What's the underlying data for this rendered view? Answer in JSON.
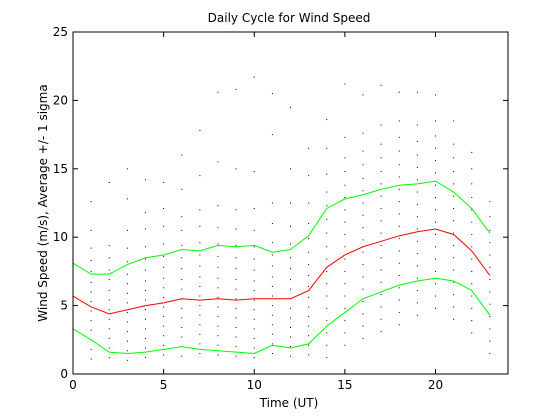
{
  "chart_data": {
    "type": "line",
    "title": "Daily Cycle for Wind Speed",
    "xlabel": "Time (UT)",
    "ylabel": "Wind Speed (m/s), Average +/- 1 sigma",
    "xlim": [
      0,
      24
    ],
    "ylim": [
      0,
      25
    ],
    "xticks": [
      0,
      5,
      10,
      15,
      20
    ],
    "yticks": [
      0,
      5,
      10,
      15,
      20,
      25
    ],
    "grid": false,
    "x": [
      0,
      1,
      2,
      3,
      4,
      5,
      6,
      7,
      8,
      9,
      10,
      11,
      12,
      13,
      14,
      15,
      16,
      17,
      18,
      19,
      20,
      21,
      22,
      23
    ],
    "series": [
      {
        "role": "mean",
        "color": "#ff0000",
        "values": [
          5.7,
          4.9,
          4.4,
          4.7,
          5.0,
          5.2,
          5.5,
          5.4,
          5.5,
          5.4,
          5.5,
          5.5,
          5.5,
          6.1,
          7.8,
          8.7,
          9.3,
          9.7,
          10.1,
          10.4,
          10.6,
          10.2,
          9.0,
          7.2
        ]
      },
      {
        "role": "mean + 1 sigma",
        "color": "#00ff00",
        "values": [
          8.1,
          7.3,
          7.3,
          8.0,
          8.5,
          8.7,
          9.1,
          9.0,
          9.4,
          9.3,
          9.4,
          8.9,
          9.1,
          10.1,
          12.1,
          12.8,
          13.1,
          13.5,
          13.8,
          13.9,
          14.1,
          13.3,
          12.1,
          10.3
        ]
      },
      {
        "role": "mean - 1 sigma",
        "color": "#00ff00",
        "values": [
          3.3,
          2.5,
          1.6,
          1.5,
          1.6,
          1.8,
          2.0,
          1.8,
          1.7,
          1.6,
          1.5,
          2.1,
          1.9,
          2.2,
          3.5,
          4.5,
          5.5,
          6.0,
          6.5,
          6.8,
          7.0,
          6.8,
          6.1,
          4.3
        ]
      }
    ],
    "scatter_color": "#000000",
    "scatter": [
      [
        0,
        1.5
      ],
      [
        0,
        2.2
      ],
      [
        0,
        3.0
      ],
      [
        0,
        3.8
      ],
      [
        0,
        4.5
      ],
      [
        0,
        5.2
      ],
      [
        0,
        5.9
      ],
      [
        0,
        6.6
      ],
      [
        0,
        7.3
      ],
      [
        0,
        8.0
      ],
      [
        0,
        8.8
      ],
      [
        0,
        9.6
      ],
      [
        1,
        1.1
      ],
      [
        1,
        1.8
      ],
      [
        1,
        2.5
      ],
      [
        1,
        3.2
      ],
      [
        1,
        3.9
      ],
      [
        1,
        4.6
      ],
      [
        1,
        5.3
      ],
      [
        1,
        6.0
      ],
      [
        1,
        6.7
      ],
      [
        1,
        7.5
      ],
      [
        1,
        8.3
      ],
      [
        1,
        9.2
      ],
      [
        1,
        10.5
      ],
      [
        1,
        12.6
      ],
      [
        2,
        1.2
      ],
      [
        2,
        1.9
      ],
      [
        2,
        2.6
      ],
      [
        2,
        3.3
      ],
      [
        2,
        4.0
      ],
      [
        2,
        4.7
      ],
      [
        2,
        5.4
      ],
      [
        2,
        6.1
      ],
      [
        2,
        6.9
      ],
      [
        2,
        7.6
      ],
      [
        2,
        8.5
      ],
      [
        2,
        9.4
      ],
      [
        2,
        14.0
      ],
      [
        3,
        1.0
      ],
      [
        3,
        1.7
      ],
      [
        3,
        2.4
      ],
      [
        3,
        3.1
      ],
      [
        3,
        3.8
      ],
      [
        3,
        4.5
      ],
      [
        3,
        5.2
      ],
      [
        3,
        5.9
      ],
      [
        3,
        6.6
      ],
      [
        3,
        7.3
      ],
      [
        3,
        8.2
      ],
      [
        3,
        9.2
      ],
      [
        3,
        10.5
      ],
      [
        3,
        12.8
      ],
      [
        3,
        15.0
      ],
      [
        4,
        1.2
      ],
      [
        4,
        1.9
      ],
      [
        4,
        2.6
      ],
      [
        4,
        3.3
      ],
      [
        4,
        4.0
      ],
      [
        4,
        4.7
      ],
      [
        4,
        5.4
      ],
      [
        4,
        6.1
      ],
      [
        4,
        6.8
      ],
      [
        4,
        7.6
      ],
      [
        4,
        8.4
      ],
      [
        4,
        9.3
      ],
      [
        4,
        10.6
      ],
      [
        4,
        11.8
      ],
      [
        4,
        14.2
      ],
      [
        5,
        1.4
      ],
      [
        5,
        2.1
      ],
      [
        5,
        2.8
      ],
      [
        5,
        3.5
      ],
      [
        5,
        4.2
      ],
      [
        5,
        4.9
      ],
      [
        5,
        5.6
      ],
      [
        5,
        6.3
      ],
      [
        5,
        7.0
      ],
      [
        5,
        7.8
      ],
      [
        5,
        8.6
      ],
      [
        5,
        9.5
      ],
      [
        5,
        10.8
      ],
      [
        5,
        12.1
      ],
      [
        5,
        14.0
      ],
      [
        6,
        1.3
      ],
      [
        6,
        2.0
      ],
      [
        6,
        2.7
      ],
      [
        6,
        3.4
      ],
      [
        6,
        4.1
      ],
      [
        6,
        4.8
      ],
      [
        6,
        5.5
      ],
      [
        6,
        6.2
      ],
      [
        6,
        6.9
      ],
      [
        6,
        7.7
      ],
      [
        6,
        8.5
      ],
      [
        6,
        9.4
      ],
      [
        6,
        10.5
      ],
      [
        6,
        11.5
      ],
      [
        6,
        13.5
      ],
      [
        6,
        16.0
      ],
      [
        7,
        1.5
      ],
      [
        7,
        2.2
      ],
      [
        7,
        2.9
      ],
      [
        7,
        3.6
      ],
      [
        7,
        4.3
      ],
      [
        7,
        5.0
      ],
      [
        7,
        5.7
      ],
      [
        7,
        6.4
      ],
      [
        7,
        7.1
      ],
      [
        7,
        7.9
      ],
      [
        7,
        8.7
      ],
      [
        7,
        9.6
      ],
      [
        7,
        10.8
      ],
      [
        7,
        12.0
      ],
      [
        7,
        14.5
      ],
      [
        7,
        17.8
      ],
      [
        8,
        1.4
      ],
      [
        8,
        2.1
      ],
      [
        8,
        2.8
      ],
      [
        8,
        3.5
      ],
      [
        8,
        4.2
      ],
      [
        8,
        4.9
      ],
      [
        8,
        5.6
      ],
      [
        8,
        6.3
      ],
      [
        8,
        7.0
      ],
      [
        8,
        7.8
      ],
      [
        8,
        8.6
      ],
      [
        8,
        9.5
      ],
      [
        8,
        10.7
      ],
      [
        8,
        12.3
      ],
      [
        8,
        15.5
      ],
      [
        8,
        20.6
      ],
      [
        9,
        1.3
      ],
      [
        9,
        2.0
      ],
      [
        9,
        2.7
      ],
      [
        9,
        3.4
      ],
      [
        9,
        4.1
      ],
      [
        9,
        4.8
      ],
      [
        9,
        5.5
      ],
      [
        9,
        6.2
      ],
      [
        9,
        6.9
      ],
      [
        9,
        7.7
      ],
      [
        9,
        8.5
      ],
      [
        9,
        9.4
      ],
      [
        9,
        10.6
      ],
      [
        9,
        12.0
      ],
      [
        9,
        15.0
      ],
      [
        9,
        20.8
      ],
      [
        10,
        1.2
      ],
      [
        10,
        1.9
      ],
      [
        10,
        2.6
      ],
      [
        10,
        3.3
      ],
      [
        10,
        4.0
      ],
      [
        10,
        4.7
      ],
      [
        10,
        5.4
      ],
      [
        10,
        6.1
      ],
      [
        10,
        6.8
      ],
      [
        10,
        7.6
      ],
      [
        10,
        8.4
      ],
      [
        10,
        9.3
      ],
      [
        10,
        10.5
      ],
      [
        10,
        12.1
      ],
      [
        10,
        14.8
      ],
      [
        10,
        21.7
      ],
      [
        11,
        1.5
      ],
      [
        11,
        2.2
      ],
      [
        11,
        2.9
      ],
      [
        11,
        3.6
      ],
      [
        11,
        4.3
      ],
      [
        11,
        5.0
      ],
      [
        11,
        5.7
      ],
      [
        11,
        6.4
      ],
      [
        11,
        7.1
      ],
      [
        11,
        7.9
      ],
      [
        11,
        8.7
      ],
      [
        11,
        9.6
      ],
      [
        11,
        11.0
      ],
      [
        11,
        12.5
      ],
      [
        11,
        17.5
      ],
      [
        11,
        20.5
      ],
      [
        12,
        1.3
      ],
      [
        12,
        2.0
      ],
      [
        12,
        2.7
      ],
      [
        12,
        3.4
      ],
      [
        12,
        4.1
      ],
      [
        12,
        4.8
      ],
      [
        12,
        5.5
      ],
      [
        12,
        6.2
      ],
      [
        12,
        6.9
      ],
      [
        12,
        7.7
      ],
      [
        12,
        8.5
      ],
      [
        12,
        9.5
      ],
      [
        12,
        10.8
      ],
      [
        12,
        12.5
      ],
      [
        12,
        15.0
      ],
      [
        12,
        19.5
      ],
      [
        13,
        1.4
      ],
      [
        13,
        2.1
      ],
      [
        13,
        2.8
      ],
      [
        13,
        3.5
      ],
      [
        13,
        4.2
      ],
      [
        13,
        4.9
      ],
      [
        13,
        5.6
      ],
      [
        13,
        6.4
      ],
      [
        13,
        7.2
      ],
      [
        13,
        8.0
      ],
      [
        13,
        8.9
      ],
      [
        13,
        9.9
      ],
      [
        13,
        11.0
      ],
      [
        13,
        12.5
      ],
      [
        13,
        14.5
      ],
      [
        13,
        16.5
      ],
      [
        14,
        1.2
      ],
      [
        14,
        2.1
      ],
      [
        14,
        3.0
      ],
      [
        14,
        3.9
      ],
      [
        14,
        4.8
      ],
      [
        14,
        5.7
      ],
      [
        14,
        6.6
      ],
      [
        14,
        7.5
      ],
      [
        14,
        8.4
      ],
      [
        14,
        9.3
      ],
      [
        14,
        10.3
      ],
      [
        14,
        11.3
      ],
      [
        14,
        12.3
      ],
      [
        14,
        13.3
      ],
      [
        14,
        14.6
      ],
      [
        14,
        16.5
      ],
      [
        14,
        18.6
      ],
      [
        15,
        2.1
      ],
      [
        15,
        3.0
      ],
      [
        15,
        3.9
      ],
      [
        15,
        4.8
      ],
      [
        15,
        5.7
      ],
      [
        15,
        6.6
      ],
      [
        15,
        7.5
      ],
      [
        15,
        8.4
      ],
      [
        15,
        9.3
      ],
      [
        15,
        10.2
      ],
      [
        15,
        11.1
      ],
      [
        15,
        12.0
      ],
      [
        15,
        12.9
      ],
      [
        15,
        13.8
      ],
      [
        15,
        14.8
      ],
      [
        15,
        15.8
      ],
      [
        15,
        17.3
      ],
      [
        15,
        21.2
      ],
      [
        16,
        2.6
      ],
      [
        16,
        3.5
      ],
      [
        16,
        4.4
      ],
      [
        16,
        5.3
      ],
      [
        16,
        6.2
      ],
      [
        16,
        7.1
      ],
      [
        16,
        8.0
      ],
      [
        16,
        8.9
      ],
      [
        16,
        9.8
      ],
      [
        16,
        10.7
      ],
      [
        16,
        11.6
      ],
      [
        16,
        12.5
      ],
      [
        16,
        13.4
      ],
      [
        16,
        14.3
      ],
      [
        16,
        15.3
      ],
      [
        16,
        16.3
      ],
      [
        16,
        17.6
      ],
      [
        16,
        20.4
      ],
      [
        17,
        3.1
      ],
      [
        17,
        4.0
      ],
      [
        17,
        4.9
      ],
      [
        17,
        5.8
      ],
      [
        17,
        6.7
      ],
      [
        17,
        7.6
      ],
      [
        17,
        8.5
      ],
      [
        17,
        9.4
      ],
      [
        17,
        10.3
      ],
      [
        17,
        11.2
      ],
      [
        17,
        12.1
      ],
      [
        17,
        13.0
      ],
      [
        17,
        13.9
      ],
      [
        17,
        14.8
      ],
      [
        17,
        15.8
      ],
      [
        17,
        16.8
      ],
      [
        17,
        18.2
      ],
      [
        17,
        21.1
      ],
      [
        18,
        3.6
      ],
      [
        18,
        4.5
      ],
      [
        18,
        5.4
      ],
      [
        18,
        6.3
      ],
      [
        18,
        7.2
      ],
      [
        18,
        8.1
      ],
      [
        18,
        9.0
      ],
      [
        18,
        9.9
      ],
      [
        18,
        10.8
      ],
      [
        18,
        11.7
      ],
      [
        18,
        12.6
      ],
      [
        18,
        13.5
      ],
      [
        18,
        14.4
      ],
      [
        18,
        15.3
      ],
      [
        18,
        16.3
      ],
      [
        18,
        17.3
      ],
      [
        18,
        18.5
      ],
      [
        18,
        20.6
      ],
      [
        19,
        4.3
      ],
      [
        19,
        5.2
      ],
      [
        19,
        6.1
      ],
      [
        19,
        7.0
      ],
      [
        19,
        7.9
      ],
      [
        19,
        8.8
      ],
      [
        19,
        9.7
      ],
      [
        19,
        10.6
      ],
      [
        19,
        11.5
      ],
      [
        19,
        12.4
      ],
      [
        19,
        13.3
      ],
      [
        19,
        14.2
      ],
      [
        19,
        15.1
      ],
      [
        19,
        16.0
      ],
      [
        19,
        17.0
      ],
      [
        19,
        18.2
      ],
      [
        19,
        20.6
      ],
      [
        20,
        4.8
      ],
      [
        20,
        5.7
      ],
      [
        20,
        6.6
      ],
      [
        20,
        7.5
      ],
      [
        20,
        8.4
      ],
      [
        20,
        9.3
      ],
      [
        20,
        10.2
      ],
      [
        20,
        11.1
      ],
      [
        20,
        12.0
      ],
      [
        20,
        12.9
      ],
      [
        20,
        13.8
      ],
      [
        20,
        14.7
      ],
      [
        20,
        15.6
      ],
      [
        20,
        16.5
      ],
      [
        20,
        17.4
      ],
      [
        20,
        18.5
      ],
      [
        20,
        20.4
      ],
      [
        21,
        4.0
      ],
      [
        21,
        4.9
      ],
      [
        21,
        5.8
      ],
      [
        21,
        6.7
      ],
      [
        21,
        7.6
      ],
      [
        21,
        8.5
      ],
      [
        21,
        9.4
      ],
      [
        21,
        10.3
      ],
      [
        21,
        11.2
      ],
      [
        21,
        12.1
      ],
      [
        21,
        13.0
      ],
      [
        21,
        13.9
      ],
      [
        21,
        14.8
      ],
      [
        21,
        15.8
      ],
      [
        21,
        16.8
      ],
      [
        21,
        18.5
      ],
      [
        22,
        3.0
      ],
      [
        22,
        3.9
      ],
      [
        22,
        4.8
      ],
      [
        22,
        5.7
      ],
      [
        22,
        6.6
      ],
      [
        22,
        7.5
      ],
      [
        22,
        8.4
      ],
      [
        22,
        9.3
      ],
      [
        22,
        10.2
      ],
      [
        22,
        11.1
      ],
      [
        22,
        12.0
      ],
      [
        22,
        12.9
      ],
      [
        22,
        13.9
      ],
      [
        22,
        15.0
      ],
      [
        22,
        16.2
      ],
      [
        23,
        1.5
      ],
      [
        23,
        2.4
      ],
      [
        23,
        3.3
      ],
      [
        23,
        4.2
      ],
      [
        23,
        5.1
      ],
      [
        23,
        6.0
      ],
      [
        23,
        6.9
      ],
      [
        23,
        7.8
      ],
      [
        23,
        8.7
      ],
      [
        23,
        9.6
      ],
      [
        23,
        10.5
      ],
      [
        23,
        11.5
      ],
      [
        23,
        12.6
      ]
    ]
  }
}
